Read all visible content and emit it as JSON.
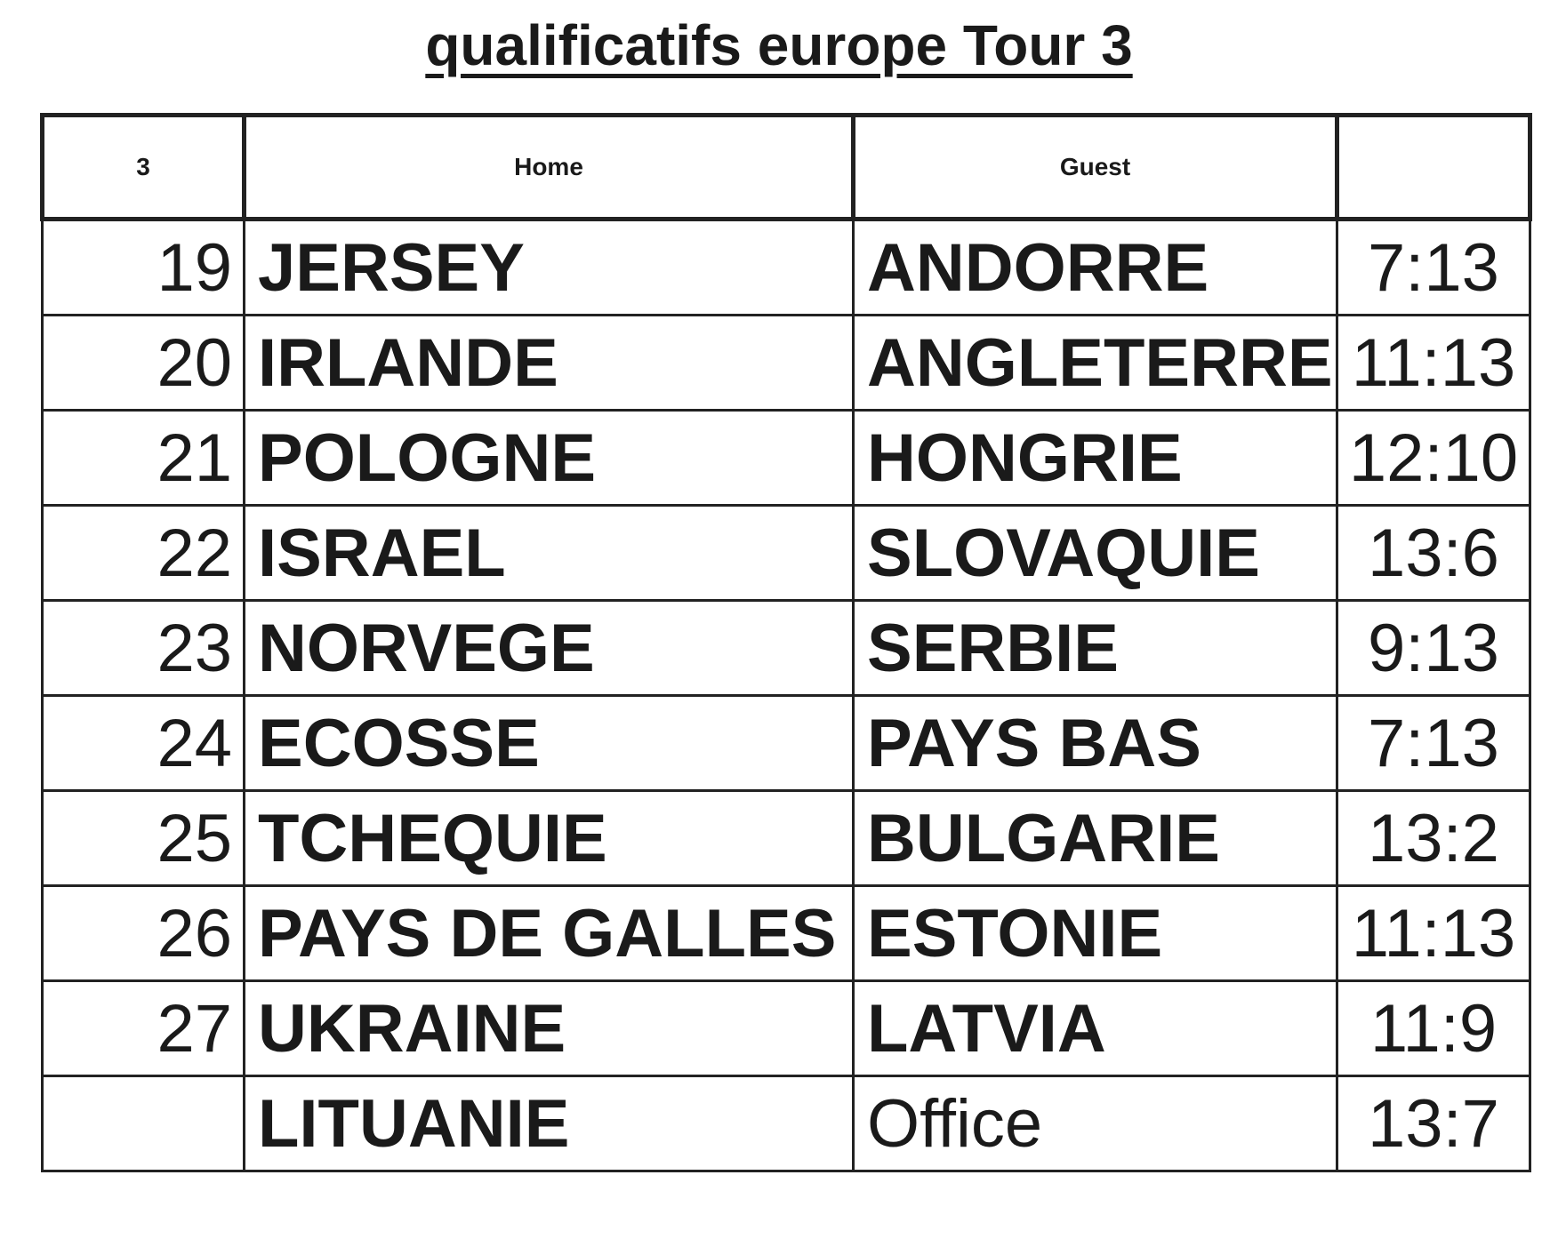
{
  "title": "qualificatifs europe  Tour 3",
  "table": {
    "headers": [
      "3",
      "Home",
      "Guest",
      ""
    ],
    "rows": [
      {
        "no": "19",
        "home": "JERSEY",
        "guest": "ANDORRE",
        "score": "7:13"
      },
      {
        "no": "20",
        "home": "IRLANDE",
        "guest": "ANGLETERRE",
        "score": "11:13"
      },
      {
        "no": "21",
        "home": "POLOGNE",
        "guest": "HONGRIE",
        "score": "12:10"
      },
      {
        "no": "22",
        "home": "ISRAEL",
        "guest": "SLOVAQUIE",
        "score": "13:6"
      },
      {
        "no": "23",
        "home": "NORVEGE",
        "guest": "SERBIE",
        "score": "9:13"
      },
      {
        "no": "24",
        "home": "ECOSSE",
        "guest": "PAYS BAS",
        "score": "7:13"
      },
      {
        "no": "25",
        "home": "TCHEQUIE",
        "guest": "BULGARIE",
        "score": "13:2"
      },
      {
        "no": "26",
        "home": "PAYS DE GALLES",
        "guest": "ESTONIE",
        "score": "11:13"
      },
      {
        "no": "27",
        "home": "UKRAINE",
        "guest": "LATVIA",
        "score": "11:9"
      },
      {
        "no": "",
        "home": "LITUANIE",
        "guest": "Office",
        "score": "13:7"
      }
    ]
  }
}
